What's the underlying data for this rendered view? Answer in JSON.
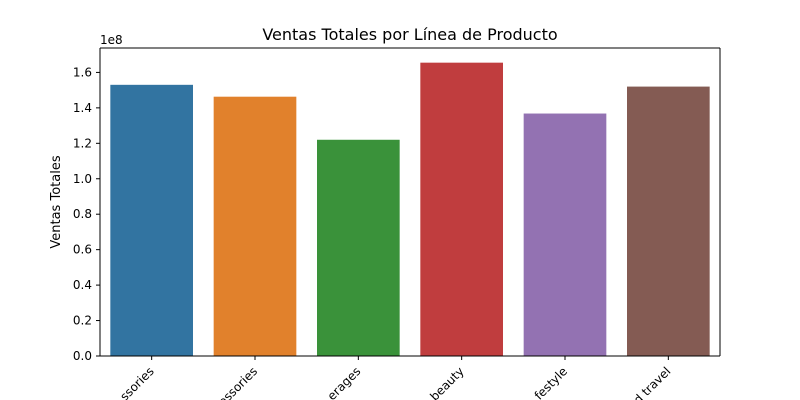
{
  "chart_data": {
    "type": "bar",
    "title": "Ventas Totales por Línea de Producto",
    "xlabel": "",
    "ylabel": "Ventas Totales",
    "scale_label": "1e8",
    "categories": [
      "Fashion accessories",
      "Electronic accessories",
      "Food and beverages",
      "Health and beauty",
      "Sports and lifestyle",
      "Home and travel"
    ],
    "visible_category_labels": [
      "ssories",
      "essories",
      "erages",
      "beauty",
      "festyle",
      "d travel"
    ],
    "values": [
      153000000,
      146300000,
      122000000,
      165500000,
      136800000,
      152000000
    ],
    "colors": [
      "#3274a1",
      "#e1812c",
      "#3a923a",
      "#c03d3e",
      "#9372b2",
      "#845b53"
    ],
    "yticks": [
      0,
      20000000,
      40000000,
      60000000,
      80000000,
      100000000,
      120000000,
      140000000,
      160000000
    ],
    "ytick_labels": [
      "0.0",
      "0.2",
      "0.4",
      "0.6",
      "0.8",
      "1.0",
      "1.2",
      "1.4",
      "1.6"
    ],
    "ylim": [
      0,
      173775000
    ],
    "grid": false,
    "legend": "none"
  }
}
